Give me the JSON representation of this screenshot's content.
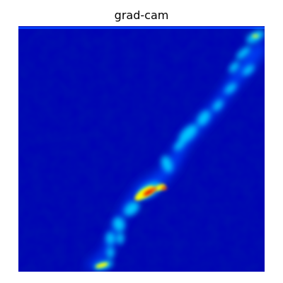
{
  "figure": {
    "title": "grad-cam"
  },
  "heatmap": {
    "colormap": "jet",
    "background_color": "#0000b4",
    "colors": {
      "low": "#0000b4",
      "low_mid": "#0044ff",
      "mid": "#00c8ff",
      "mid_high": "#ffff00",
      "high": "#ff6a00",
      "peak": "#e00000"
    }
  }
}
